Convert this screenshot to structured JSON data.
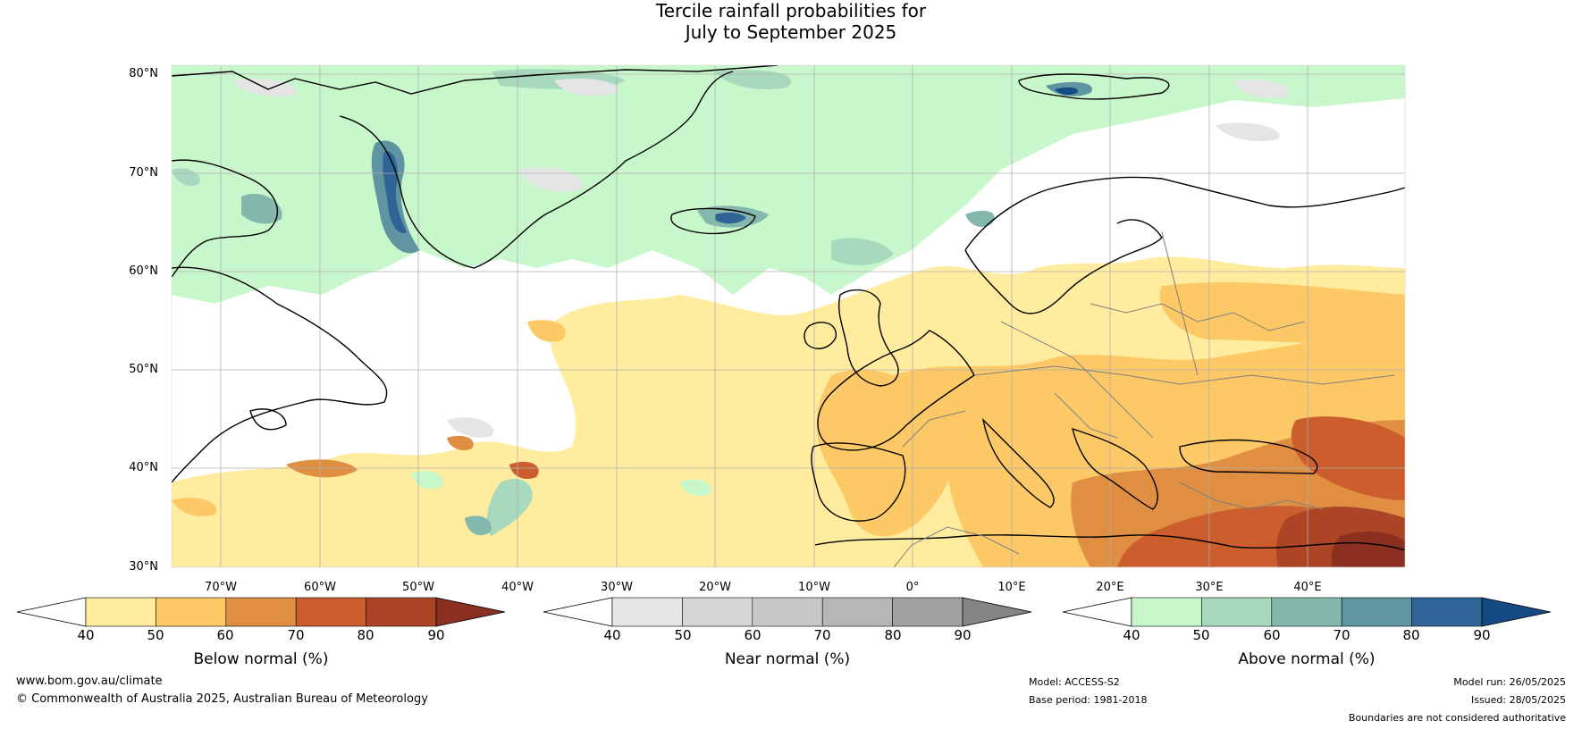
{
  "title": {
    "line1": "Tercile rainfall probabilities for",
    "line2": "July to September 2025"
  },
  "map": {
    "projection": "equirectangular",
    "lon_range": [
      -85,
      50
    ],
    "lat_range": [
      30,
      81
    ],
    "lat_labels": [
      "80°N",
      "70°N",
      "60°N",
      "50°N",
      "40°N",
      "30°N"
    ],
    "lon_labels": [
      "70°W",
      "60°W",
      "50°W",
      "40°W",
      "30°W",
      "20°W",
      "10°W",
      "0°",
      "10°E",
      "20°E",
      "30°E",
      "40°E"
    ],
    "gridlines": true,
    "colors": {
      "ocean_background": "#ffffff",
      "coastline": "#000000",
      "borders": "#808080",
      "gridline": "#b0b0b0"
    }
  },
  "colorbars": [
    {
      "name": "below",
      "label": "Below normal (%)",
      "ticks": [
        "40",
        "50",
        "60",
        "70",
        "80",
        "90"
      ],
      "colors": [
        "#ffffff",
        "#ffec9f",
        "#fdc967",
        "#df8e42",
        "#cc5e2e",
        "#ab4526",
        "#8b3020"
      ]
    },
    {
      "name": "near",
      "label": "Near normal (%)",
      "ticks": [
        "40",
        "50",
        "60",
        "70",
        "80",
        "90"
      ],
      "colors": [
        "#ffffff",
        "#e5e5e5",
        "#d6d6d6",
        "#c8c8c8",
        "#b6b6b6",
        "#a2a2a2",
        "#858585"
      ]
    },
    {
      "name": "above",
      "label": "Above normal (%)",
      "ticks": [
        "40",
        "50",
        "60",
        "70",
        "80",
        "90"
      ],
      "colors": [
        "#ffffff",
        "#c9f7cc",
        "#a6d9bd",
        "#84b8ac",
        "#5e95a0",
        "#2f6496",
        "#144b85"
      ]
    }
  ],
  "footer": {
    "website": "www.bom.gov.au/climate",
    "copyright": "© Commonwealth of Australia 2025, Australian Bureau of Meteorology",
    "model": "Model: ACCESS-S2",
    "base_period": "Base period: 1981-2018",
    "model_run": "Model run: 26/05/2025",
    "issued": "Issued: 28/05/2025",
    "disclaimer": "Boundaries are not considered authoritative"
  }
}
